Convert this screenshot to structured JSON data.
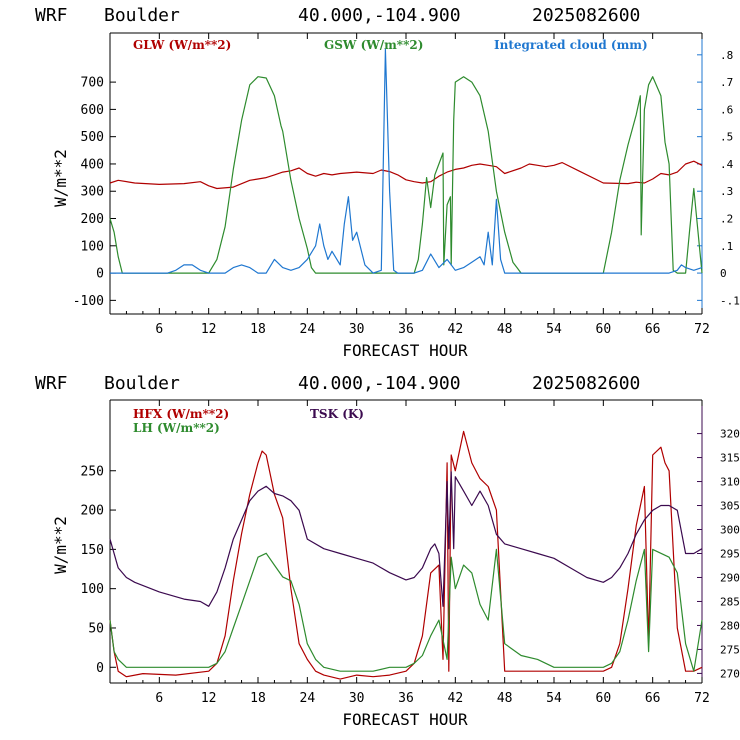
{
  "chart_data": [
    {
      "type": "line",
      "header": {
        "model": "WRF",
        "site": "Boulder",
        "coords": "40.000,-104.900",
        "init": "2025082600"
      },
      "xlabel": "FORECAST HOUR",
      "ylabel": "W/m**2",
      "xlim": [
        0,
        72
      ],
      "ylim": [
        -150,
        880
      ],
      "xticks": [
        "6",
        "12",
        "18",
        "24",
        "30",
        "36",
        "42",
        "48",
        "54",
        "60",
        "66",
        "72"
      ],
      "yticks": [
        "-100",
        "0",
        "100",
        "200",
        "300",
        "400",
        "500",
        "600",
        "700"
      ],
      "right_axis": {
        "ylim": [
          -0.15,
          0.88
        ],
        "ticks": [
          "-.1",
          "0",
          ".1",
          ".2",
          ".3",
          ".4",
          ".5",
          ".6",
          ".7",
          ".8"
        ]
      },
      "legend": [
        "GLW (W/m**2)",
        "GSW (W/m**2)",
        "Integrated cloud (mm)"
      ],
      "series": [
        {
          "name": "GLW (W/m**2)",
          "color": "#b00000",
          "axis": "left",
          "x": [
            0,
            1,
            3,
            6,
            9,
            11,
            12,
            13,
            15,
            17,
            18,
            19,
            20,
            21,
            22,
            23,
            24,
            25,
            26,
            27,
            28,
            30,
            32,
            33,
            34,
            35,
            36,
            37,
            38,
            39,
            40,
            41,
            42,
            43,
            44,
            45,
            46,
            47,
            48,
            50,
            51,
            52,
            53,
            54,
            55,
            57,
            60,
            63,
            64,
            65,
            66,
            67,
            68,
            69,
            70,
            71,
            72
          ],
          "y": [
            330,
            340,
            330,
            325,
            328,
            335,
            320,
            310,
            315,
            340,
            345,
            350,
            360,
            370,
            375,
            385,
            365,
            355,
            365,
            360,
            365,
            370,
            365,
            378,
            372,
            360,
            342,
            335,
            330,
            335,
            355,
            370,
            380,
            385,
            395,
            400,
            395,
            390,
            365,
            385,
            400,
            395,
            390,
            395,
            405,
            375,
            330,
            328,
            333,
            330,
            345,
            365,
            360,
            370,
            400,
            410,
            395
          ]
        },
        {
          "name": "GSW (W/m**2)",
          "color": "#2e8b2e",
          "axis": "left",
          "x": [
            0,
            0.5,
            1,
            1.5,
            12,
            13,
            14,
            15,
            16,
            17,
            18,
            19,
            20,
            20.8,
            21,
            22,
            23,
            24,
            24.5,
            25,
            34,
            35,
            36,
            37,
            37.5,
            38,
            38.5,
            39,
            39.5,
            40,
            40.5,
            40.6,
            41,
            41.4,
            41.5,
            41.8,
            42,
            43,
            44,
            45,
            46,
            47,
            48,
            49,
            49.5,
            50,
            60,
            61,
            62,
            63,
            64,
            64.5,
            64.6,
            65,
            65.5,
            66,
            67,
            67.5,
            68,
            68.5,
            69,
            70,
            70.5,
            71,
            72
          ],
          "y": [
            200,
            150,
            60,
            0,
            0,
            50,
            170,
            380,
            560,
            690,
            720,
            715,
            650,
            540,
            520,
            340,
            200,
            90,
            20,
            0,
            0,
            0,
            0,
            0,
            50,
            180,
            350,
            240,
            360,
            400,
            440,
            30,
            250,
            280,
            30,
            560,
            700,
            720,
            700,
            650,
            520,
            300,
            150,
            40,
            20,
            0,
            0,
            150,
            340,
            470,
            580,
            650,
            140,
            600,
            690,
            720,
            650,
            480,
            400,
            10,
            0,
            0,
            160,
            310,
            0
          ]
        },
        {
          "name": "Integrated cloud (mm)",
          "color": "#1f77d0",
          "axis": "right",
          "x": [
            0,
            7,
            8,
            9,
            10,
            11,
            12,
            14,
            15,
            16,
            17,
            18,
            19,
            20,
            21,
            22,
            23,
            24,
            25,
            25.5,
            26,
            26.5,
            27,
            28,
            28.5,
            29,
            29.5,
            30,
            31,
            32,
            33,
            33.5,
            34,
            34.5,
            35,
            36,
            37,
            38,
            39,
            40,
            41,
            42,
            43,
            44,
            45,
            45.5,
            46,
            46.5,
            47,
            47.5,
            48,
            54,
            60,
            65,
            66,
            67,
            68,
            69,
            69.5,
            70,
            71,
            72
          ],
          "y": [
            0,
            0,
            0.01,
            0.03,
            0.03,
            0.01,
            0,
            0,
            0.02,
            0.03,
            0.02,
            0,
            0,
            0.05,
            0.02,
            0.01,
            0.02,
            0.05,
            0.1,
            0.18,
            0.1,
            0.05,
            0.08,
            0.03,
            0.18,
            0.28,
            0.12,
            0.15,
            0.03,
            0,
            0.01,
            0.82,
            0.3,
            0.01,
            0,
            0,
            0,
            0.01,
            0.07,
            0.02,
            0.05,
            0.01,
            0.02,
            0.04,
            0.06,
            0.03,
            0.15,
            0.03,
            0.27,
            0.05,
            0,
            0,
            0,
            0,
            0,
            0,
            0,
            0.01,
            0.03,
            0.02,
            0.01,
            0.02
          ]
        }
      ]
    },
    {
      "type": "line",
      "header": {
        "model": "WRF",
        "site": "Boulder",
        "coords": "40.000,-104.900",
        "init": "2025082600"
      },
      "xlabel": "FORECAST HOUR",
      "ylabel": "W/m**2",
      "xlim": [
        0,
        72
      ],
      "ylim": [
        -20,
        340
      ],
      "xticks": [
        "6",
        "12",
        "18",
        "24",
        "30",
        "36",
        "42",
        "48",
        "54",
        "60",
        "66",
        "72"
      ],
      "yticks": [
        "0",
        "50",
        "100",
        "150",
        "200",
        "250"
      ],
      "right_axis": {
        "ylim": [
          268,
          327
        ],
        "ticks": [
          "270",
          "275",
          "280",
          "285",
          "290",
          "295",
          "300",
          "305",
          "310",
          "315",
          "320"
        ]
      },
      "legend": [
        "HFX (W/m**2)",
        "LH (W/m**2)",
        "TSK (K)"
      ],
      "series": [
        {
          "name": "HFX (W/m**2)",
          "color": "#b00000",
          "axis": "left",
          "x": [
            0,
            0.5,
            1,
            2,
            4,
            8,
            12,
            13,
            14,
            15,
            16,
            17,
            18,
            18.5,
            19,
            20,
            21,
            22,
            23,
            24,
            25,
            26,
            28,
            30,
            32,
            34,
            36,
            37,
            38,
            39,
            40,
            40.5,
            41,
            41.2,
            41.5,
            42,
            43,
            44,
            45,
            46,
            47,
            48,
            50,
            52,
            54,
            56,
            58,
            60,
            61,
            62,
            63,
            64,
            65,
            65.5,
            66,
            67,
            67.5,
            68,
            69,
            70,
            71,
            72
          ],
          "y": [
            60,
            20,
            -5,
            -12,
            -8,
            -10,
            -5,
            5,
            40,
            110,
            170,
            220,
            260,
            275,
            270,
            220,
            190,
            100,
            30,
            10,
            -5,
            -10,
            -15,
            -10,
            -12,
            -10,
            -5,
            5,
            40,
            120,
            130,
            10,
            260,
            -5,
            270,
            250,
            300,
            260,
            240,
            230,
            200,
            -5,
            -5,
            -5,
            -5,
            -5,
            -5,
            -5,
            0,
            30,
            100,
            180,
            230,
            30,
            270,
            280,
            260,
            250,
            50,
            -5,
            -5,
            0
          ]
        },
        {
          "name": "LH (W/m**2)",
          "color": "#2e8b2e",
          "axis": "left",
          "x": [
            0,
            0.5,
            1,
            2,
            6,
            12,
            13,
            14,
            15,
            16,
            17,
            18,
            19,
            20,
            21,
            22,
            23,
            24,
            25,
            26,
            28,
            30,
            32,
            34,
            36,
            37,
            38,
            39,
            40,
            41,
            41.5,
            42,
            43,
            44,
            45,
            46,
            47,
            48,
            50,
            52,
            54,
            56,
            58,
            60,
            61,
            62,
            63,
            64,
            65,
            65.5,
            66,
            67,
            68,
            69,
            70,
            71,
            72
          ],
          "y": [
            60,
            20,
            10,
            0,
            0,
            0,
            5,
            20,
            50,
            80,
            110,
            140,
            145,
            130,
            115,
            110,
            80,
            30,
            10,
            0,
            -5,
            -5,
            -5,
            0,
            0,
            5,
            15,
            40,
            60,
            10,
            140,
            100,
            130,
            120,
            80,
            60,
            150,
            30,
            15,
            10,
            0,
            0,
            0,
            0,
            5,
            20,
            60,
            110,
            150,
            20,
            150,
            145,
            140,
            120,
            30,
            -5,
            60
          ]
        },
        {
          "name": "TSK (K)",
          "color": "#3b0a4f",
          "axis": "right",
          "x": [
            0,
            1,
            2,
            3,
            6,
            9,
            11,
            12,
            13,
            14,
            15,
            16,
            17,
            18,
            19,
            20,
            21,
            22,
            23,
            24,
            26,
            28,
            30,
            32,
            34,
            36,
            37,
            38,
            39,
            39.5,
            40,
            40.5,
            41,
            41.2,
            41.5,
            41.8,
            42,
            43,
            44,
            45,
            46,
            47,
            48,
            50,
            52,
            54,
            56,
            58,
            60,
            61,
            62,
            63,
            64,
            65,
            66,
            67,
            68,
            69,
            70,
            71,
            72
          ],
          "y": [
            298,
            292,
            290,
            289,
            287,
            285.5,
            285,
            284,
            287,
            292,
            298,
            302,
            306,
            308,
            309,
            307.5,
            307,
            306,
            304,
            298,
            296,
            295,
            294,
            293,
            291,
            289.5,
            290,
            292,
            296,
            297,
            295,
            284,
            310,
            296,
            312,
            296,
            311,
            308,
            305,
            308,
            305,
            299,
            297,
            296,
            295,
            294,
            292,
            290,
            289,
            290,
            292,
            295,
            299,
            302,
            304,
            305,
            305,
            304,
            295,
            295,
            296
          ]
        }
      ]
    }
  ]
}
